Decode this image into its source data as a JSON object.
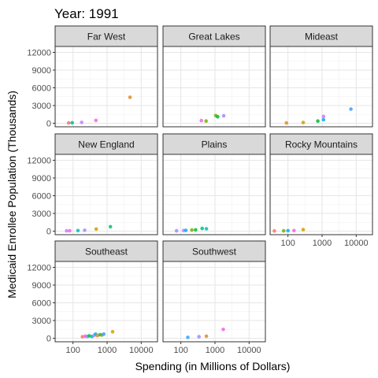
{
  "chart_data": {
    "type": "scatter",
    "title": "Year: 1991",
    "xlabel": "Spending (in Millions of Dollars)",
    "ylabel": "Medicaid Enrollee Population (Thousands)",
    "x_scale": "log10",
    "x_ticks": [
      100,
      1000,
      10000
    ],
    "x_tick_labels": [
      "100",
      "1000",
      "10000"
    ],
    "xlim": [
      30,
      30000
    ],
    "y_ticks": [
      0,
      3000,
      6000,
      9000,
      12000
    ],
    "y_tick_labels": [
      "0",
      "3000",
      "6000",
      "9000",
      "12000"
    ],
    "ylim": [
      -600,
      13000
    ],
    "grid": true,
    "legend": "none",
    "panels": [
      {
        "name": "Far West",
        "points": [
          {
            "x": 75,
            "y": 50,
            "color": "#f6766d"
          },
          {
            "x": 95,
            "y": 80,
            "color": "#00bc8c"
          },
          {
            "x": 180,
            "y": 150,
            "color": "#c77cff"
          },
          {
            "x": 470,
            "y": 480,
            "color": "#f564e3"
          },
          {
            "x": 4700,
            "y": 4400,
            "color": "#e08b2c"
          }
        ]
      },
      {
        "name": "Great Lakes",
        "points": [
          {
            "x": 400,
            "y": 450,
            "color": "#f564e3"
          },
          {
            "x": 550,
            "y": 380,
            "color": "#7cae00"
          },
          {
            "x": 1050,
            "y": 1300,
            "color": "#7cae00"
          },
          {
            "x": 1200,
            "y": 1100,
            "color": "#00ba38"
          },
          {
            "x": 1800,
            "y": 1250,
            "color": "#9e8cff"
          }
        ]
      },
      {
        "name": "Mideast",
        "points": [
          {
            "x": 90,
            "y": 60,
            "color": "#e08b2c"
          },
          {
            "x": 280,
            "y": 120,
            "color": "#cfa000"
          },
          {
            "x": 750,
            "y": 380,
            "color": "#00ba38"
          },
          {
            "x": 1100,
            "y": 1150,
            "color": "#e76bf3"
          },
          {
            "x": 1100,
            "y": 600,
            "color": "#00b0f6"
          },
          {
            "x": 7000,
            "y": 2400,
            "color": "#35a2ff"
          }
        ]
      },
      {
        "name": "New England",
        "points": [
          {
            "x": 65,
            "y": 60,
            "color": "#c77cff"
          },
          {
            "x": 80,
            "y": 70,
            "color": "#f564e3"
          },
          {
            "x": 140,
            "y": 100,
            "color": "#00c0b8"
          },
          {
            "x": 220,
            "y": 150,
            "color": "#9e8cff"
          },
          {
            "x": 480,
            "y": 350,
            "color": "#cfa000"
          },
          {
            "x": 1250,
            "y": 750,
            "color": "#00bf7d"
          }
        ]
      },
      {
        "name": "Plains",
        "points": [
          {
            "x": 75,
            "y": 60,
            "color": "#9e8cff"
          },
          {
            "x": 120,
            "y": 90,
            "color": "#c77cff"
          },
          {
            "x": 140,
            "y": 130,
            "color": "#00b0f6"
          },
          {
            "x": 210,
            "y": 180,
            "color": "#7cae00"
          },
          {
            "x": 270,
            "y": 220,
            "color": "#00ba38"
          },
          {
            "x": 420,
            "y": 450,
            "color": "#00bf7d"
          },
          {
            "x": 560,
            "y": 400,
            "color": "#00c0b8"
          }
        ]
      },
      {
        "name": "Rocky Mountains",
        "points": [
          {
            "x": 40,
            "y": 30,
            "color": "#f8766d"
          },
          {
            "x": 75,
            "y": 60,
            "color": "#7cae00"
          },
          {
            "x": 100,
            "y": 80,
            "color": "#00b0f6"
          },
          {
            "x": 150,
            "y": 100,
            "color": "#f564e3"
          },
          {
            "x": 280,
            "y": 250,
            "color": "#cfa000"
          }
        ]
      },
      {
        "name": "Southeast",
        "points": [
          {
            "x": 190,
            "y": 250,
            "color": "#f8766d"
          },
          {
            "x": 230,
            "y": 350,
            "color": "#f564e3"
          },
          {
            "x": 260,
            "y": 300,
            "color": "#9e8cff"
          },
          {
            "x": 300,
            "y": 400,
            "color": "#00ba38"
          },
          {
            "x": 360,
            "y": 300,
            "color": "#00c0b8"
          },
          {
            "x": 420,
            "y": 500,
            "color": "#c77cff"
          },
          {
            "x": 460,
            "y": 700,
            "color": "#00b0f6"
          },
          {
            "x": 520,
            "y": 450,
            "color": "#e08b2c"
          },
          {
            "x": 620,
            "y": 600,
            "color": "#00bf7d"
          },
          {
            "x": 700,
            "y": 550,
            "color": "#7cae00"
          },
          {
            "x": 800,
            "y": 700,
            "color": "#35a2ff"
          },
          {
            "x": 1450,
            "y": 1100,
            "color": "#cfa000"
          }
        ]
      },
      {
        "name": "Southwest",
        "points": [
          {
            "x": 160,
            "y": 150,
            "color": "#35a2ff"
          },
          {
            "x": 340,
            "y": 250,
            "color": "#9e8cff"
          },
          {
            "x": 560,
            "y": 350,
            "color": "#e08b2c"
          },
          {
            "x": 1750,
            "y": 1500,
            "color": "#f564e3"
          }
        ]
      }
    ]
  }
}
